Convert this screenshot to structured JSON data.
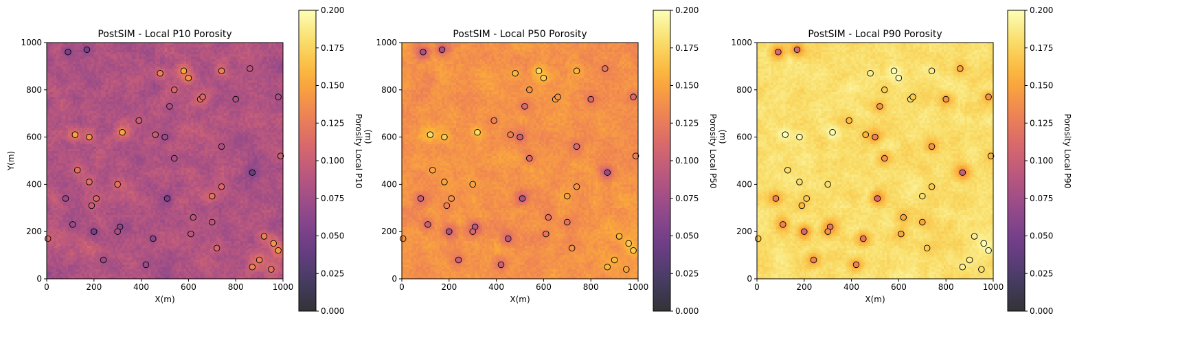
{
  "figure": {
    "colormap": "inferno",
    "colormap_stops": [
      "#000004",
      "#1b0c41",
      "#4a0c6b",
      "#781c6d",
      "#a52c60",
      "#cf4446",
      "#ed6925",
      "#fb9b06",
      "#f7d13d",
      "#fcffa4"
    ],
    "map_alpha": 0.8,
    "data_marker_edge": "#000000"
  },
  "chart_data": [
    {
      "type": "heatmap",
      "title": "PostSIM - Local P10 Porosity",
      "xlabel": "X(m)",
      "ylabel": "Y(m)",
      "xlim": [
        0,
        1000
      ],
      "ylim": [
        0,
        1000
      ],
      "xticks": [
        "0",
        "200",
        "400",
        "600",
        "800",
        "1000"
      ],
      "yticks": [
        "0",
        "200",
        "400",
        "600",
        "800",
        "1000"
      ],
      "colorbar": {
        "label": "Porosity Local P10",
        "overlap_label": "(m)",
        "range": [
          0.0,
          0.2
        ],
        "ticks": [
          "0.000",
          "0.025",
          "0.050",
          "0.075",
          "0.100",
          "0.125",
          "0.150",
          "0.175",
          "0.200"
        ]
      },
      "grid_cells": [
        100,
        100
      ],
      "field_mean": 0.085,
      "field_variation": 0.035
    },
    {
      "type": "heatmap",
      "title": "PostSIM - Local P50 Porosity",
      "xlabel": "X(m)",
      "ylabel": "",
      "xlim": [
        0,
        1000
      ],
      "ylim": [
        0,
        1000
      ],
      "xticks": [
        "0",
        "200",
        "400",
        "600",
        "800",
        "1000"
      ],
      "yticks": [
        "0",
        "200",
        "400",
        "600",
        "800",
        "1000"
      ],
      "colorbar": {
        "label": "Porosity Local P50",
        "overlap_label": "(m)",
        "range": [
          0.0,
          0.2
        ],
        "ticks": [
          "0.000",
          "0.025",
          "0.050",
          "0.075",
          "0.100",
          "0.125",
          "0.150",
          "0.175",
          "0.200"
        ]
      },
      "grid_cells": [
        100,
        100
      ],
      "field_mean": 0.14,
      "field_variation": 0.025
    },
    {
      "type": "heatmap",
      "title": "PostSIM - Local P90 Porosity",
      "xlabel": "X(m)",
      "ylabel": "",
      "xlim": [
        0,
        1000
      ],
      "ylim": [
        0,
        1000
      ],
      "xticks": [
        "0",
        "200",
        "400",
        "600",
        "800",
        "1000"
      ],
      "yticks": [
        "0",
        "200",
        "400",
        "600",
        "800",
        "1000"
      ],
      "colorbar": {
        "label": "Porosity Local P90",
        "overlap_label": "",
        "range": [
          0.0,
          0.2
        ],
        "ticks": [
          "0.000",
          "0.025",
          "0.050",
          "0.075",
          "0.100",
          "0.125",
          "0.150",
          "0.175",
          "0.200"
        ]
      },
      "grid_cells": [
        100,
        100
      ],
      "field_mean": 0.18,
      "field_variation": 0.02
    }
  ],
  "well_data": {
    "description_of_marks": "conditioning data points plotted as colored circles",
    "points": [
      {
        "x": 90,
        "y": 960,
        "porosity": 0.08
      },
      {
        "x": 170,
        "y": 970,
        "porosity": 0.08
      },
      {
        "x": 480,
        "y": 870,
        "porosity": 0.16
      },
      {
        "x": 580,
        "y": 880,
        "porosity": 0.18
      },
      {
        "x": 600,
        "y": 850,
        "porosity": 0.17
      },
      {
        "x": 740,
        "y": 880,
        "porosity": 0.16
      },
      {
        "x": 860,
        "y": 890,
        "porosity": 0.12
      },
      {
        "x": 540,
        "y": 800,
        "porosity": 0.14
      },
      {
        "x": 520,
        "y": 730,
        "porosity": 0.11
      },
      {
        "x": 650,
        "y": 760,
        "porosity": 0.15
      },
      {
        "x": 660,
        "y": 770,
        "porosity": 0.14
      },
      {
        "x": 800,
        "y": 760,
        "porosity": 0.11
      },
      {
        "x": 980,
        "y": 770,
        "porosity": 0.11
      },
      {
        "x": 390,
        "y": 670,
        "porosity": 0.13
      },
      {
        "x": 120,
        "y": 610,
        "porosity": 0.18
      },
      {
        "x": 180,
        "y": 600,
        "porosity": 0.17
      },
      {
        "x": 320,
        "y": 620,
        "porosity": 0.18
      },
      {
        "x": 460,
        "y": 610,
        "porosity": 0.13
      },
      {
        "x": 500,
        "y": 600,
        "porosity": 0.1
      },
      {
        "x": 740,
        "y": 560,
        "porosity": 0.11
      },
      {
        "x": 540,
        "y": 510,
        "porosity": 0.11
      },
      {
        "x": 990,
        "y": 520,
        "porosity": 0.13
      },
      {
        "x": 130,
        "y": 460,
        "porosity": 0.15
      },
      {
        "x": 870,
        "y": 450,
        "porosity": 0.07
      },
      {
        "x": 180,
        "y": 410,
        "porosity": 0.15
      },
      {
        "x": 300,
        "y": 400,
        "porosity": 0.15
      },
      {
        "x": 740,
        "y": 390,
        "porosity": 0.14
      },
      {
        "x": 80,
        "y": 340,
        "porosity": 0.1
      },
      {
        "x": 210,
        "y": 340,
        "porosity": 0.14
      },
      {
        "x": 510,
        "y": 340,
        "porosity": 0.08
      },
      {
        "x": 700,
        "y": 350,
        "porosity": 0.15
      },
      {
        "x": 190,
        "y": 310,
        "porosity": 0.13
      },
      {
        "x": 110,
        "y": 230,
        "porosity": 0.1
      },
      {
        "x": 310,
        "y": 220,
        "porosity": 0.09
      },
      {
        "x": 620,
        "y": 260,
        "porosity": 0.12
      },
      {
        "x": 700,
        "y": 240,
        "porosity": 0.12
      },
      {
        "x": 200,
        "y": 200,
        "porosity": 0.08
      },
      {
        "x": 300,
        "y": 200,
        "porosity": 0.11
      },
      {
        "x": 610,
        "y": 190,
        "porosity": 0.12
      },
      {
        "x": 920,
        "y": 180,
        "porosity": 0.16
      },
      {
        "x": 450,
        "y": 170,
        "porosity": 0.09
      },
      {
        "x": 5,
        "y": 170,
        "porosity": 0.14
      },
      {
        "x": 960,
        "y": 150,
        "porosity": 0.17
      },
      {
        "x": 720,
        "y": 130,
        "porosity": 0.14
      },
      {
        "x": 980,
        "y": 120,
        "porosity": 0.17
      },
      {
        "x": 240,
        "y": 80,
        "porosity": 0.1
      },
      {
        "x": 900,
        "y": 80,
        "porosity": 0.16
      },
      {
        "x": 420,
        "y": 60,
        "porosity": 0.1
      },
      {
        "x": 870,
        "y": 50,
        "porosity": 0.16
      },
      {
        "x": 950,
        "y": 40,
        "porosity": 0.15
      }
    ]
  }
}
